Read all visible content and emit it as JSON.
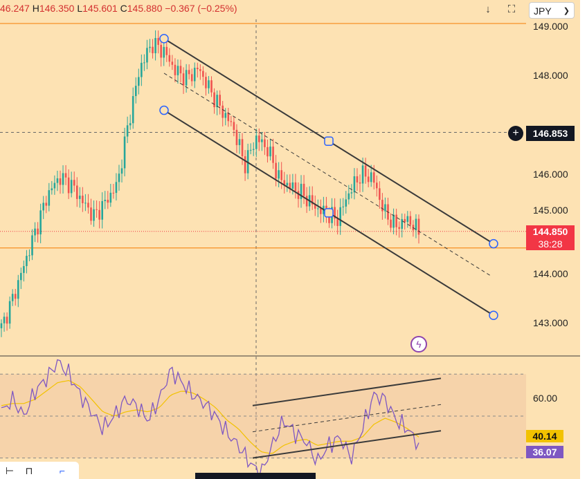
{
  "ohlc": {
    "open_prefix": "",
    "open": "46.247",
    "high_key": "H",
    "high": "146.350",
    "low_key": "L",
    "low": "145.601",
    "close_key": "C",
    "close": "145.880",
    "change": "−0.367 (−0.25%)"
  },
  "header": {
    "currency": "JPY",
    "download_icon": "arrow-down-icon",
    "fullscreen_icon": "fullscreen-icon"
  },
  "price_axis": {
    "ticks": [
      "149.000",
      "148.000",
      "146.000",
      "145.000",
      "144.000",
      "143.000"
    ],
    "crosshair_label": "146.853",
    "last_price": "144.850",
    "countdown": "38:28"
  },
  "rsi_axis": {
    "ticks": [
      "60.00"
    ],
    "ma_value": "40.14",
    "rsi_value": "36.07"
  },
  "colors": {
    "background": "#fde2b3",
    "up": "#26a69a",
    "down": "#ef5350",
    "channel": "#3a3a3a",
    "rsi": "#7e57c2",
    "rsi_ma": "#f2c200",
    "last_price": "#f23645",
    "orange_line": "#f57c00"
  },
  "chart_data": [
    {
      "type": "candlestick",
      "ylim": [
        142.5,
        149.1
      ],
      "price_lines": {
        "hline_top": 149.0,
        "hline_support": 144.5,
        "crosshair_y": 146.853,
        "last": 144.85
      },
      "channel_upper": [
        [
          0.0,
          148.75
        ],
        [
          1.0,
          144.6
        ]
      ],
      "channel_lower": [
        [
          0.0,
          147.3
        ],
        [
          1.0,
          143.15
        ]
      ],
      "channel_mid": [
        [
          0.0,
          148.05
        ],
        [
          1.0,
          143.95
        ]
      ],
      "key_closes": [
        142.9,
        143.5,
        144.2,
        144.9,
        145.6,
        145.95,
        145.8,
        145.45,
        145.15,
        145.45,
        145.8,
        147.1,
        148.2,
        148.65,
        148.5,
        148.1,
        147.95,
        148.15,
        147.7,
        147.3,
        146.95,
        146.2,
        146.75,
        146.5,
        145.9,
        145.75,
        145.6,
        145.35,
        145.2,
        145.1,
        145.65,
        146.0,
        145.95,
        145.25,
        144.95,
        145.1,
        144.85
      ]
    },
    {
      "type": "line",
      "name": "RSI",
      "ylim": [
        20,
        78
      ],
      "levels": [
        70,
        50,
        30
      ],
      "rsi_keys": [
        52,
        58,
        50,
        62,
        68,
        76,
        70,
        60,
        52,
        44,
        50,
        58,
        55,
        48,
        58,
        72,
        66,
        60,
        56,
        50,
        42,
        36,
        28,
        22,
        36,
        48,
        42,
        38,
        28,
        36,
        40,
        30,
        44,
        60,
        58,
        48,
        44,
        36
      ],
      "ma_keys": [
        55,
        56,
        56,
        58,
        62,
        66,
        67,
        64,
        58,
        52,
        50,
        52,
        53,
        52,
        54,
        60,
        62,
        61,
        58,
        54,
        48,
        44,
        38,
        33,
        32,
        36,
        38,
        39,
        36,
        37,
        38,
        38,
        40,
        46,
        49,
        47,
        44,
        40
      ]
    }
  ]
}
